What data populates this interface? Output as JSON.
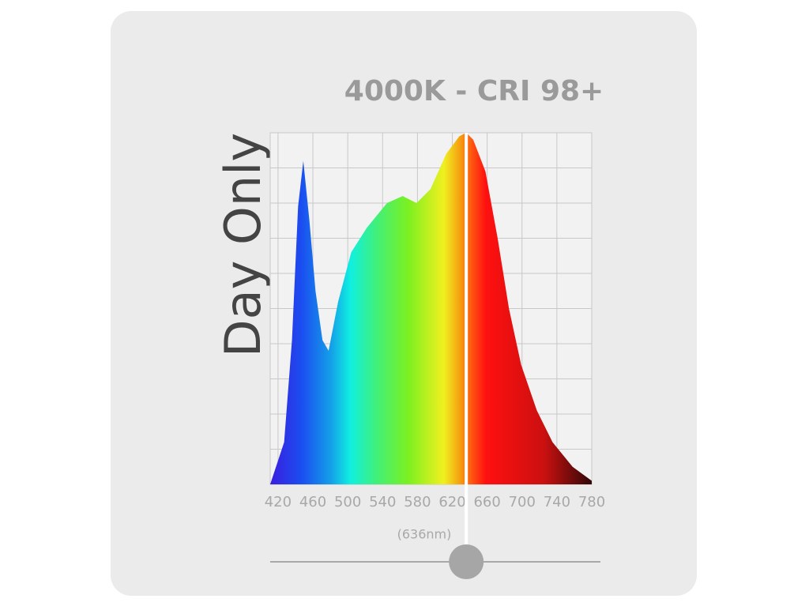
{
  "chart_data": {
    "type": "area",
    "title": "4000K - CRI 98+",
    "subtitle": "Day Only",
    "x": [
      411,
      427,
      436,
      443,
      449,
      456,
      463,
      471,
      478,
      489,
      504,
      522,
      545,
      563,
      579,
      595,
      613,
      628,
      636,
      644,
      658,
      672,
      685,
      699,
      717,
      735,
      758,
      780
    ],
    "values": [
      0,
      12,
      41,
      79,
      92,
      75,
      55,
      41,
      38,
      52,
      66,
      73,
      80,
      82,
      80,
      84,
      94,
      99,
      100,
      98,
      89,
      70,
      50,
      34,
      21,
      12,
      5,
      1
    ],
    "xlim": [
      411,
      780
    ],
    "xticks": [
      420,
      460,
      500,
      540,
      580,
      620,
      660,
      700,
      740,
      780
    ],
    "ylim": [
      0,
      100
    ],
    "yticks": [
      0,
      10,
      20,
      30,
      40,
      50,
      60,
      70,
      80,
      90,
      100
    ],
    "grid": true,
    "marker": {
      "value": 636,
      "label": "(636nm)"
    }
  }
}
